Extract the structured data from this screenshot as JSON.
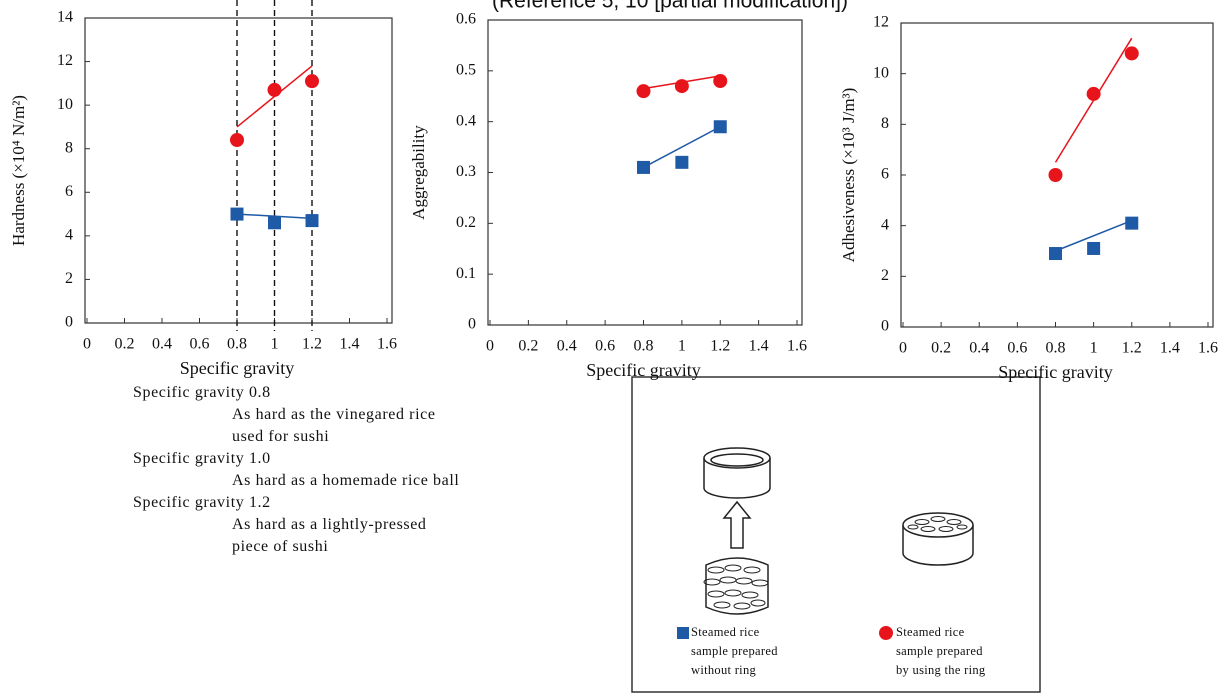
{
  "caption": "(Reference 5, 10 [partial modification])",
  "chart_data": [
    {
      "type": "scatter",
      "y_label": "Hardness (×10⁴ N/m²)",
      "x_label": "Specific gravity",
      "xlim": [
        0,
        1.6
      ],
      "xticks": [
        0,
        0.2,
        0.4,
        0.6,
        0.8,
        1,
        1.2,
        1.4,
        1.6
      ],
      "ylim": [
        0,
        14
      ],
      "yticks": [
        0,
        2,
        4,
        6,
        8,
        10,
        12,
        14
      ],
      "guides": [
        0.8,
        1,
        1.2
      ],
      "series": [
        {
          "name": "Steamed rice sample prepared without ring",
          "color": "#1f5aa6",
          "marker": "square",
          "x": [
            0.8,
            1,
            1.2
          ],
          "values": [
            5.0,
            4.6,
            4.7
          ],
          "trend": {
            "x": [
              0.8,
              1.2
            ],
            "values": [
              5.0,
              4.8
            ]
          }
        },
        {
          "name": "Steamed rice sample prepared by using the ring",
          "color": "#e8141b",
          "marker": "circle",
          "x": [
            0.8,
            1,
            1.2
          ],
          "values": [
            8.4,
            10.7,
            11.1
          ],
          "trend": {
            "x": [
              0.8,
              1.2
            ],
            "values": [
              9.0,
              11.8
            ]
          }
        }
      ]
    },
    {
      "type": "scatter",
      "y_label": "Aggregability",
      "x_label": "Specific gravity",
      "xlim": [
        0,
        1.6
      ],
      "xticks": [
        0,
        0.2,
        0.4,
        0.6,
        0.8,
        1,
        1.2,
        1.4,
        1.6
      ],
      "ylim": [
        0,
        0.6
      ],
      "yticks": [
        0,
        0.1,
        0.2,
        0.3,
        0.4,
        0.5,
        0.6
      ],
      "series": [
        {
          "color": "#1f5aa6",
          "marker": "square",
          "x": [
            0.8,
            1,
            1.2
          ],
          "values": [
            0.31,
            0.32,
            0.39
          ],
          "trend": {
            "x": [
              0.8,
              1.2
            ],
            "values": [
              0.31,
              0.39
            ]
          }
        },
        {
          "color": "#e8141b",
          "marker": "circle",
          "x": [
            0.8,
            1,
            1.2
          ],
          "values": [
            0.46,
            0.47,
            0.48
          ],
          "trend": {
            "x": [
              0.8,
              1.2
            ],
            "values": [
              0.465,
              0.49
            ]
          }
        }
      ]
    },
    {
      "type": "scatter",
      "y_label": "Adhesiveness (×10³ J/m³)",
      "x_label": "Specific gravity",
      "xlim": [
        0,
        1.6
      ],
      "xticks": [
        0,
        0.2,
        0.4,
        0.6,
        0.8,
        1,
        1.2,
        1.4,
        1.6
      ],
      "ylim": [
        0,
        12
      ],
      "yticks": [
        0,
        2,
        4,
        6,
        8,
        10,
        12
      ],
      "series": [
        {
          "color": "#1f5aa6",
          "marker": "square",
          "x": [
            0.8,
            1,
            1.2
          ],
          "values": [
            2.9,
            3.1,
            4.1
          ],
          "trend": {
            "x": [
              0.8,
              1.2
            ],
            "values": [
              3.0,
              4.2
            ]
          }
        },
        {
          "color": "#e8141b",
          "marker": "circle",
          "x": [
            0.8,
            1,
            1.2
          ],
          "values": [
            6.0,
            9.2,
            10.8
          ],
          "trend": {
            "x": [
              0.8,
              1.2
            ],
            "values": [
              6.5,
              11.4
            ]
          }
        }
      ]
    }
  ],
  "notes": [
    {
      "label": "Specific gravity 0.8",
      "text": [
        "As hard as the vinegared rice",
        "used for sushi"
      ]
    },
    {
      "label": "Specific gravity 1.0",
      "text": [
        "As hard as a homemade rice ball"
      ]
    },
    {
      "label": "Specific gravity 1.2",
      "text": [
        "As hard as a lightly-pressed",
        "piece of sushi"
      ]
    }
  ]
}
